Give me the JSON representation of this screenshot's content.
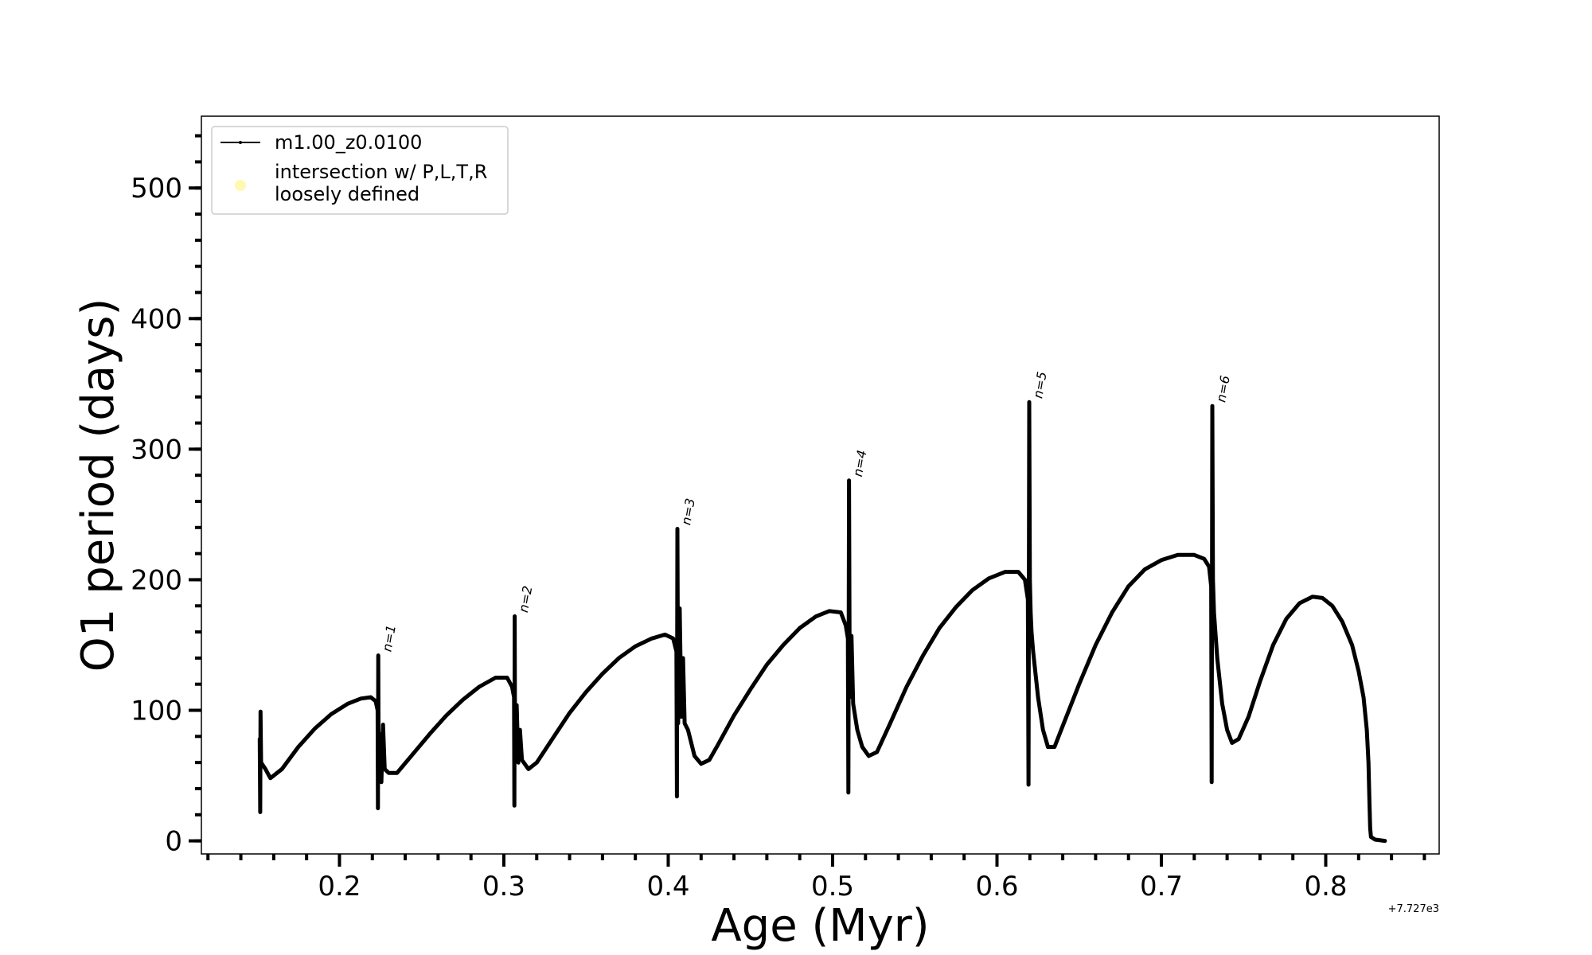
{
  "chart_data": {
    "type": "line",
    "xlabel": "Age (Myr)",
    "ylabel": "O1 period (days)",
    "x_offset_label": "+7.727e3",
    "xlim": [
      0.116,
      0.869
    ],
    "ylim": [
      -10,
      555
    ],
    "xticks": [
      {
        "value": 0.2,
        "label": "0.2"
      },
      {
        "value": 0.3,
        "label": "0.3"
      },
      {
        "value": 0.4,
        "label": "0.4"
      },
      {
        "value": 0.5,
        "label": "0.5"
      },
      {
        "value": 0.6,
        "label": "0.6"
      },
      {
        "value": 0.7,
        "label": "0.7"
      },
      {
        "value": 0.8,
        "label": "0.8"
      }
    ],
    "yticks": [
      {
        "value": 0,
        "label": "0"
      },
      {
        "value": 100,
        "label": "100"
      },
      {
        "value": 200,
        "label": "200"
      },
      {
        "value": 300,
        "label": "300"
      },
      {
        "value": 400,
        "label": "400"
      },
      {
        "value": 500,
        "label": "500"
      }
    ],
    "grid": false,
    "legend": {
      "placement": "top-left",
      "entries": [
        {
          "label": "m1.00_z0.0100",
          "marker": "line",
          "color": "#000000"
        },
        {
          "label_lines": [
            "intersection w/ P,L,T,R",
            "loosely defined"
          ],
          "marker": "circle",
          "color": "#fff8b0"
        }
      ]
    },
    "series": [
      {
        "name": "m1.00_z0.0100",
        "color": "#000000",
        "points": [
          [
            0.1515,
            78
          ],
          [
            0.1518,
            22
          ],
          [
            0.152,
            99
          ],
          [
            0.1523,
            60
          ],
          [
            0.155,
            55
          ],
          [
            0.158,
            48
          ],
          [
            0.165,
            55
          ],
          [
            0.175,
            72
          ],
          [
            0.185,
            86
          ],
          [
            0.195,
            97
          ],
          [
            0.205,
            105
          ],
          [
            0.213,
            109
          ],
          [
            0.219,
            110
          ],
          [
            0.222,
            107
          ],
          [
            0.2232,
            100
          ],
          [
            0.2234,
            25
          ],
          [
            0.2236,
            142
          ],
          [
            0.2238,
            65
          ],
          [
            0.2245,
            82
          ],
          [
            0.2255,
            45
          ],
          [
            0.2265,
            89
          ],
          [
            0.2275,
            55
          ],
          [
            0.23,
            52
          ],
          [
            0.235,
            52
          ],
          [
            0.245,
            67
          ],
          [
            0.255,
            82
          ],
          [
            0.265,
            96
          ],
          [
            0.275,
            108
          ],
          [
            0.285,
            118
          ],
          [
            0.295,
            125
          ],
          [
            0.302,
            125
          ],
          [
            0.305,
            118
          ],
          [
            0.3062,
            110
          ],
          [
            0.3064,
            27
          ],
          [
            0.3066,
            172
          ],
          [
            0.3068,
            70
          ],
          [
            0.3078,
            104
          ],
          [
            0.3088,
            60
          ],
          [
            0.3098,
            85
          ],
          [
            0.311,
            62
          ],
          [
            0.315,
            55
          ],
          [
            0.32,
            60
          ],
          [
            0.33,
            79
          ],
          [
            0.34,
            98
          ],
          [
            0.35,
            114
          ],
          [
            0.36,
            128
          ],
          [
            0.37,
            140
          ],
          [
            0.38,
            149
          ],
          [
            0.39,
            155
          ],
          [
            0.398,
            158
          ],
          [
            0.403,
            155
          ],
          [
            0.405,
            145
          ],
          [
            0.4053,
            34
          ],
          [
            0.4056,
            239
          ],
          [
            0.406,
            90
          ],
          [
            0.407,
            178
          ],
          [
            0.408,
            95
          ],
          [
            0.409,
            140
          ],
          [
            0.41,
            90
          ],
          [
            0.412,
            85
          ],
          [
            0.416,
            65
          ],
          [
            0.42,
            59
          ],
          [
            0.425,
            62
          ],
          [
            0.43,
            73
          ],
          [
            0.44,
            96
          ],
          [
            0.45,
            116
          ],
          [
            0.46,
            135
          ],
          [
            0.47,
            150
          ],
          [
            0.48,
            163
          ],
          [
            0.49,
            172
          ],
          [
            0.498,
            176
          ],
          [
            0.505,
            175
          ],
          [
            0.508,
            165
          ],
          [
            0.5093,
            155
          ],
          [
            0.5096,
            37
          ],
          [
            0.51,
            276
          ],
          [
            0.5104,
            110
          ],
          [
            0.5115,
            157
          ],
          [
            0.5125,
            105
          ],
          [
            0.515,
            85
          ],
          [
            0.518,
            72
          ],
          [
            0.522,
            65
          ],
          [
            0.527,
            68
          ],
          [
            0.535,
            90
          ],
          [
            0.545,
            118
          ],
          [
            0.555,
            142
          ],
          [
            0.565,
            163
          ],
          [
            0.575,
            179
          ],
          [
            0.585,
            192
          ],
          [
            0.595,
            201
          ],
          [
            0.605,
            206
          ],
          [
            0.613,
            206
          ],
          [
            0.617,
            200
          ],
          [
            0.6188,
            185
          ],
          [
            0.6192,
            43
          ],
          [
            0.6196,
            336
          ],
          [
            0.62,
            200
          ],
          [
            0.6205,
            175
          ],
          [
            0.621,
            160
          ],
          [
            0.622,
            145
          ],
          [
            0.625,
            110
          ],
          [
            0.628,
            85
          ],
          [
            0.631,
            72
          ],
          [
            0.635,
            72
          ],
          [
            0.64,
            88
          ],
          [
            0.65,
            120
          ],
          [
            0.66,
            150
          ],
          [
            0.67,
            175
          ],
          [
            0.68,
            195
          ],
          [
            0.69,
            208
          ],
          [
            0.7,
            215
          ],
          [
            0.71,
            219
          ],
          [
            0.72,
            219
          ],
          [
            0.726,
            216
          ],
          [
            0.729,
            210
          ],
          [
            0.7303,
            195
          ],
          [
            0.7306,
            45
          ],
          [
            0.731,
            333
          ],
          [
            0.7314,
            200
          ],
          [
            0.732,
            175
          ],
          [
            0.734,
            140
          ],
          [
            0.737,
            105
          ],
          [
            0.74,
            85
          ],
          [
            0.743,
            75
          ],
          [
            0.747,
            78
          ],
          [
            0.753,
            95
          ],
          [
            0.76,
            122
          ],
          [
            0.768,
            150
          ],
          [
            0.776,
            170
          ],
          [
            0.784,
            182
          ],
          [
            0.792,
            187
          ],
          [
            0.798,
            186
          ],
          [
            0.804,
            180
          ],
          [
            0.81,
            168
          ],
          [
            0.816,
            150
          ],
          [
            0.82,
            130
          ],
          [
            0.823,
            110
          ],
          [
            0.825,
            85
          ],
          [
            0.826,
            60
          ],
          [
            0.8266,
            30
          ],
          [
            0.827,
            10
          ],
          [
            0.8275,
            3
          ],
          [
            0.83,
            1
          ],
          [
            0.836,
            0
          ]
        ]
      }
    ],
    "annotations": [
      {
        "text": "n=1",
        "x": 0.2236,
        "y": 142
      },
      {
        "text": "n=2",
        "x": 0.3066,
        "y": 172
      },
      {
        "text": "n=3",
        "x": 0.4056,
        "y": 239
      },
      {
        "text": "n=4",
        "x": 0.51,
        "y": 276
      },
      {
        "text": "n=5",
        "x": 0.6196,
        "y": 336
      },
      {
        "text": "n=6",
        "x": 0.731,
        "y": 333
      }
    ]
  }
}
